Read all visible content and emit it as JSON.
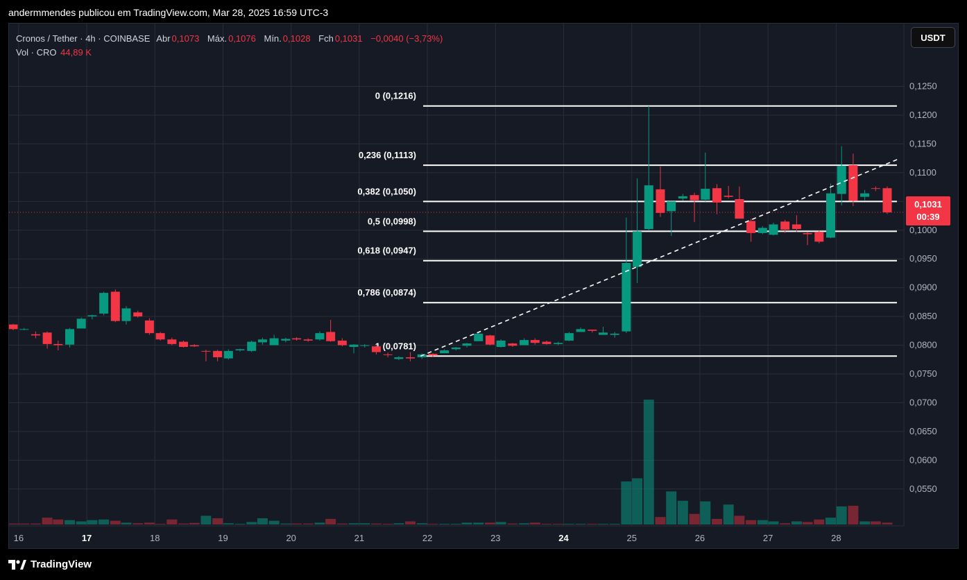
{
  "header": {
    "publisher_line": "andermmendes publicou em TradingView.com, Mar 28, 2025 16:59 UTC-3"
  },
  "legend": {
    "symbol": "Cronos / Tether · 4h · COINBASE",
    "open_label": "Abr",
    "open": "0,1073",
    "high_label": "Máx.",
    "high": "0,1076",
    "low_label": "Mín.",
    "low": "0,1028",
    "close_label": "Fch",
    "close": "0,1031",
    "change": "−0,0040 (−3,73%)",
    "vol_label": "Vol · CRO",
    "vol_value": "44,89 K"
  },
  "currency_button": "USDT",
  "price_tag": {
    "price": "0,1031",
    "countdown": "00:39"
  },
  "footer": {
    "brand": "TradingView"
  },
  "colors": {
    "up": "#089981",
    "down": "#f23645",
    "background": "#161a25",
    "grid": "#2a2e39",
    "fib_line": "#ffffff"
  },
  "chart_data": {
    "type": "candlestick",
    "x_tick_labels": [
      "16",
      "17",
      "18",
      "19",
      "20",
      "21",
      "22",
      "23",
      "24",
      "25",
      "26",
      "27",
      "28"
    ],
    "bold_x_ticks": [
      "17",
      "24"
    ],
    "y_tick_labels": [
      "0,1250",
      "0,1200",
      "0,1150",
      "0,1100",
      "0,1050",
      "0,1000",
      "0,0950",
      "0,0900",
      "0,0850",
      "0,0800",
      "0,0750",
      "0,0700",
      "0,0650",
      "0,0600",
      "0,0550"
    ],
    "y_range": [
      0.0522,
      0.1282
    ],
    "fibonacci": [
      {
        "label": "0 (0,1216)",
        "value": 0.1216
      },
      {
        "label": "0,236 (0,1113)",
        "value": 0.1113
      },
      {
        "label": "0,382 (0,1050)",
        "value": 0.105
      },
      {
        "label": "0,5 (0,0998)",
        "value": 0.0998
      },
      {
        "label": "0,618 (0,0947)",
        "value": 0.0947
      },
      {
        "label": "0,786 (0,0874)",
        "value": 0.0874
      },
      {
        "label": "1 (0,0781)",
        "value": 0.0781
      }
    ],
    "trendline": {
      "style": "dashed",
      "from": {
        "day": 21.9,
        "price": 0.0781
      },
      "to": {
        "day": 28.9,
        "price": 0.1123
      }
    },
    "current_price": 0.1031,
    "candles": [
      [
        15.92,
        0.0836,
        0.0837,
        0.0826,
        0.0828
      ],
      [
        16.08,
        0.0828,
        0.083,
        0.0826,
        0.0828
      ],
      [
        16.25,
        0.0819,
        0.0824,
        0.0812,
        0.0817
      ],
      [
        16.42,
        0.0822,
        0.0824,
        0.0794,
        0.0802
      ],
      [
        16.58,
        0.0802,
        0.0808,
        0.0791,
        0.08
      ],
      [
        16.75,
        0.0801,
        0.083,
        0.0796,
        0.0828
      ],
      [
        16.92,
        0.0829,
        0.0848,
        0.0829,
        0.0846
      ],
      [
        17.08,
        0.085,
        0.0853,
        0.0845,
        0.0852
      ],
      [
        17.25,
        0.0855,
        0.0893,
        0.0852,
        0.0891
      ],
      [
        17.42,
        0.0893,
        0.0897,
        0.084,
        0.0842
      ],
      [
        17.58,
        0.0842,
        0.0868,
        0.0836,
        0.0864
      ],
      [
        17.75,
        0.0857,
        0.086,
        0.0848,
        0.085
      ],
      [
        17.92,
        0.0843,
        0.0847,
        0.0818,
        0.0821
      ],
      [
        18.08,
        0.0821,
        0.0823,
        0.0808,
        0.081
      ],
      [
        18.25,
        0.081,
        0.0813,
        0.08,
        0.0802
      ],
      [
        18.42,
        0.0806,
        0.0808,
        0.0796,
        0.0797
      ],
      [
        18.58,
        0.08,
        0.0802,
        0.0797,
        0.0798
      ],
      [
        18.75,
        0.079,
        0.0792,
        0.0772,
        0.0789
      ],
      [
        18.92,
        0.079,
        0.0792,
        0.0772,
        0.0779
      ],
      [
        19.08,
        0.0777,
        0.0793,
        0.0775,
        0.079
      ],
      [
        19.25,
        0.0791,
        0.0794,
        0.0789,
        0.0793
      ],
      [
        19.42,
        0.079,
        0.0808,
        0.0788,
        0.0806
      ],
      [
        19.58,
        0.0805,
        0.0813,
        0.0801,
        0.081
      ],
      [
        19.75,
        0.08,
        0.0818,
        0.08,
        0.0812
      ],
      [
        19.92,
        0.0808,
        0.0813,
        0.0805,
        0.0811
      ],
      [
        20.08,
        0.0812,
        0.0814,
        0.0808,
        0.081
      ],
      [
        20.25,
        0.081,
        0.0812,
        0.0806,
        0.0808
      ],
      [
        20.42,
        0.081,
        0.0824,
        0.0808,
        0.0821
      ],
      [
        20.58,
        0.0823,
        0.0844,
        0.0806,
        0.0807
      ],
      [
        20.75,
        0.0808,
        0.0812,
        0.0798,
        0.08
      ],
      [
        20.92,
        0.0797,
        0.0802,
        0.0786,
        0.0801
      ],
      [
        21.08,
        0.0799,
        0.0802,
        0.0796,
        0.08
      ],
      [
        21.25,
        0.0798,
        0.08,
        0.0784,
        0.0788
      ],
      [
        21.42,
        0.0784,
        0.0787,
        0.0779,
        0.0783
      ],
      [
        21.58,
        0.0776,
        0.0781,
        0.0774,
        0.0779
      ],
      [
        21.75,
        0.0779,
        0.0788,
        0.0772,
        0.0777
      ],
      [
        21.92,
        0.0779,
        0.0786,
        0.0776,
        0.0784
      ],
      [
        22.08,
        0.0785,
        0.0786,
        0.078,
        0.0782
      ],
      [
        22.25,
        0.0786,
        0.0793,
        0.0786,
        0.0791
      ],
      [
        22.42,
        0.0793,
        0.0797,
        0.0791,
        0.0796
      ],
      [
        22.58,
        0.0799,
        0.0804,
        0.0796,
        0.0803
      ],
      [
        22.75,
        0.0807,
        0.0822,
        0.0807,
        0.082
      ],
      [
        22.92,
        0.0817,
        0.0818,
        0.08,
        0.0801
      ],
      [
        23.08,
        0.0797,
        0.081,
        0.0796,
        0.0808
      ],
      [
        23.25,
        0.0803,
        0.0804,
        0.0797,
        0.0799
      ],
      [
        23.42,
        0.08,
        0.0812,
        0.08,
        0.0809
      ],
      [
        23.58,
        0.0809,
        0.0812,
        0.0801,
        0.0804
      ],
      [
        23.75,
        0.0806,
        0.0808,
        0.0801,
        0.0802
      ],
      [
        23.92,
        0.0802,
        0.0806,
        0.08,
        0.0804
      ],
      [
        24.08,
        0.0808,
        0.0823,
        0.0807,
        0.0821
      ],
      [
        24.25,
        0.0823,
        0.0831,
        0.0823,
        0.0828
      ],
      [
        24.42,
        0.0827,
        0.0827,
        0.0822,
        0.0825
      ],
      [
        24.58,
        0.0818,
        0.0832,
        0.0818,
        0.0822
      ],
      [
        24.75,
        0.0818,
        0.0823,
        0.0813,
        0.082
      ],
      [
        24.92,
        0.0824,
        0.1022,
        0.0821,
        0.0943
      ],
      [
        25.08,
        0.0936,
        0.109,
        0.0908,
        0.0998
      ],
      [
        25.25,
        0.1002,
        0.1216,
        0.1,
        0.1078
      ],
      [
        25.42,
        0.1071,
        0.1111,
        0.1023,
        0.103
      ],
      [
        25.58,
        0.1033,
        0.1048,
        0.099,
        0.105
      ],
      [
        25.75,
        0.1055,
        0.1063,
        0.1051,
        0.1059
      ],
      [
        25.92,
        0.1061,
        0.1065,
        0.1014,
        0.1052
      ],
      [
        26.08,
        0.1053,
        0.1135,
        0.105,
        0.1072
      ],
      [
        26.25,
        0.1073,
        0.108,
        0.1028,
        0.1048
      ],
      [
        26.42,
        0.106,
        0.1077,
        0.1055,
        0.1058
      ],
      [
        26.58,
        0.1054,
        0.1076,
        0.1022,
        0.102
      ],
      [
        26.75,
        0.1016,
        0.102,
        0.098,
        0.0995
      ],
      [
        26.92,
        0.0995,
        0.1007,
        0.0993,
        0.1004
      ],
      [
        27.08,
        0.0992,
        0.1013,
        0.0991,
        0.101
      ],
      [
        27.25,
        0.1015,
        0.1018,
        0.0995,
        0.1001
      ],
      [
        27.42,
        0.101,
        0.1026,
        0.0997,
        0.1002
      ],
      [
        27.58,
        0.0995,
        0.0997,
        0.0974,
        0.0993
      ],
      [
        27.75,
        0.0997,
        0.1,
        0.0977,
        0.098
      ],
      [
        27.92,
        0.0987,
        0.1081,
        0.0986,
        0.1064
      ],
      [
        28.08,
        0.1063,
        0.1146,
        0.1043,
        0.1112
      ],
      [
        28.25,
        0.1113,
        0.1133,
        0.1042,
        0.1051
      ],
      [
        28.42,
        0.1058,
        0.107,
        0.1052,
        0.1064
      ],
      [
        28.58,
        0.1073,
        0.1076,
        0.1068,
        0.1072
      ],
      [
        28.75,
        0.1073,
        0.1076,
        0.1028,
        0.1031
      ]
    ],
    "volume_bars": [
      [
        15.92,
        1.5,
        false
      ],
      [
        16.08,
        1.5,
        false
      ],
      [
        16.25,
        1.5,
        false
      ],
      [
        16.42,
        11,
        false
      ],
      [
        16.58,
        8,
        false
      ],
      [
        16.75,
        7,
        true
      ],
      [
        16.92,
        5,
        true
      ],
      [
        17.08,
        7,
        true
      ],
      [
        17.25,
        8,
        true
      ],
      [
        17.42,
        6,
        false
      ],
      [
        17.58,
        3,
        true
      ],
      [
        17.75,
        2,
        false
      ],
      [
        17.92,
        3,
        false
      ],
      [
        18.08,
        1,
        false
      ],
      [
        18.25,
        8,
        false
      ],
      [
        18.42,
        1.5,
        false
      ],
      [
        18.58,
        2.5,
        false
      ],
      [
        18.75,
        14,
        true
      ],
      [
        18.92,
        10,
        false
      ],
      [
        19.08,
        2,
        true
      ],
      [
        19.25,
        1,
        true
      ],
      [
        19.42,
        4,
        true
      ],
      [
        19.58,
        10,
        true
      ],
      [
        19.75,
        6,
        true
      ],
      [
        19.92,
        1.5,
        true
      ],
      [
        20.08,
        1.5,
        false
      ],
      [
        20.25,
        1.5,
        false
      ],
      [
        20.42,
        3,
        true
      ],
      [
        20.58,
        9,
        false
      ],
      [
        20.75,
        1.5,
        false
      ],
      [
        20.92,
        2,
        true
      ],
      [
        21.08,
        2,
        true
      ],
      [
        21.25,
        1.5,
        false
      ],
      [
        21.42,
        1,
        false
      ],
      [
        21.58,
        2,
        true
      ],
      [
        21.75,
        5,
        false
      ],
      [
        21.92,
        2,
        true
      ],
      [
        22.08,
        1,
        false
      ],
      [
        22.25,
        1,
        true
      ],
      [
        22.42,
        1,
        true
      ],
      [
        22.58,
        3,
        true
      ],
      [
        22.75,
        3,
        true
      ],
      [
        22.92,
        3,
        false
      ],
      [
        23.08,
        4,
        true
      ],
      [
        23.25,
        1.5,
        false
      ],
      [
        23.42,
        2,
        true
      ],
      [
        23.58,
        3,
        false
      ],
      [
        23.75,
        1,
        false
      ],
      [
        23.92,
        1,
        false
      ],
      [
        24.08,
        1,
        true
      ],
      [
        24.25,
        1,
        true
      ],
      [
        24.42,
        1,
        false
      ],
      [
        24.58,
        1,
        true
      ],
      [
        24.75,
        1,
        true
      ],
      [
        24.92,
        69,
        true
      ],
      [
        25.08,
        74,
        true
      ],
      [
        25.25,
        200,
        true
      ],
      [
        25.42,
        12,
        false
      ],
      [
        25.58,
        53,
        true
      ],
      [
        25.75,
        38,
        true
      ],
      [
        25.92,
        17,
        false
      ],
      [
        26.08,
        37,
        true
      ],
      [
        26.25,
        9,
        false
      ],
      [
        26.42,
        32,
        true
      ],
      [
        26.58,
        14,
        false
      ],
      [
        26.75,
        7,
        false
      ],
      [
        26.92,
        7,
        true
      ],
      [
        27.08,
        5,
        true
      ],
      [
        27.25,
        2,
        false
      ],
      [
        27.42,
        5,
        true
      ],
      [
        27.58,
        4,
        false
      ],
      [
        27.75,
        8,
        false
      ],
      [
        27.92,
        11,
        true
      ],
      [
        28.08,
        29,
        true
      ],
      [
        28.25,
        30,
        false
      ],
      [
        28.42,
        5,
        true
      ],
      [
        28.58,
        5,
        false
      ],
      [
        28.75,
        3,
        false
      ]
    ]
  }
}
